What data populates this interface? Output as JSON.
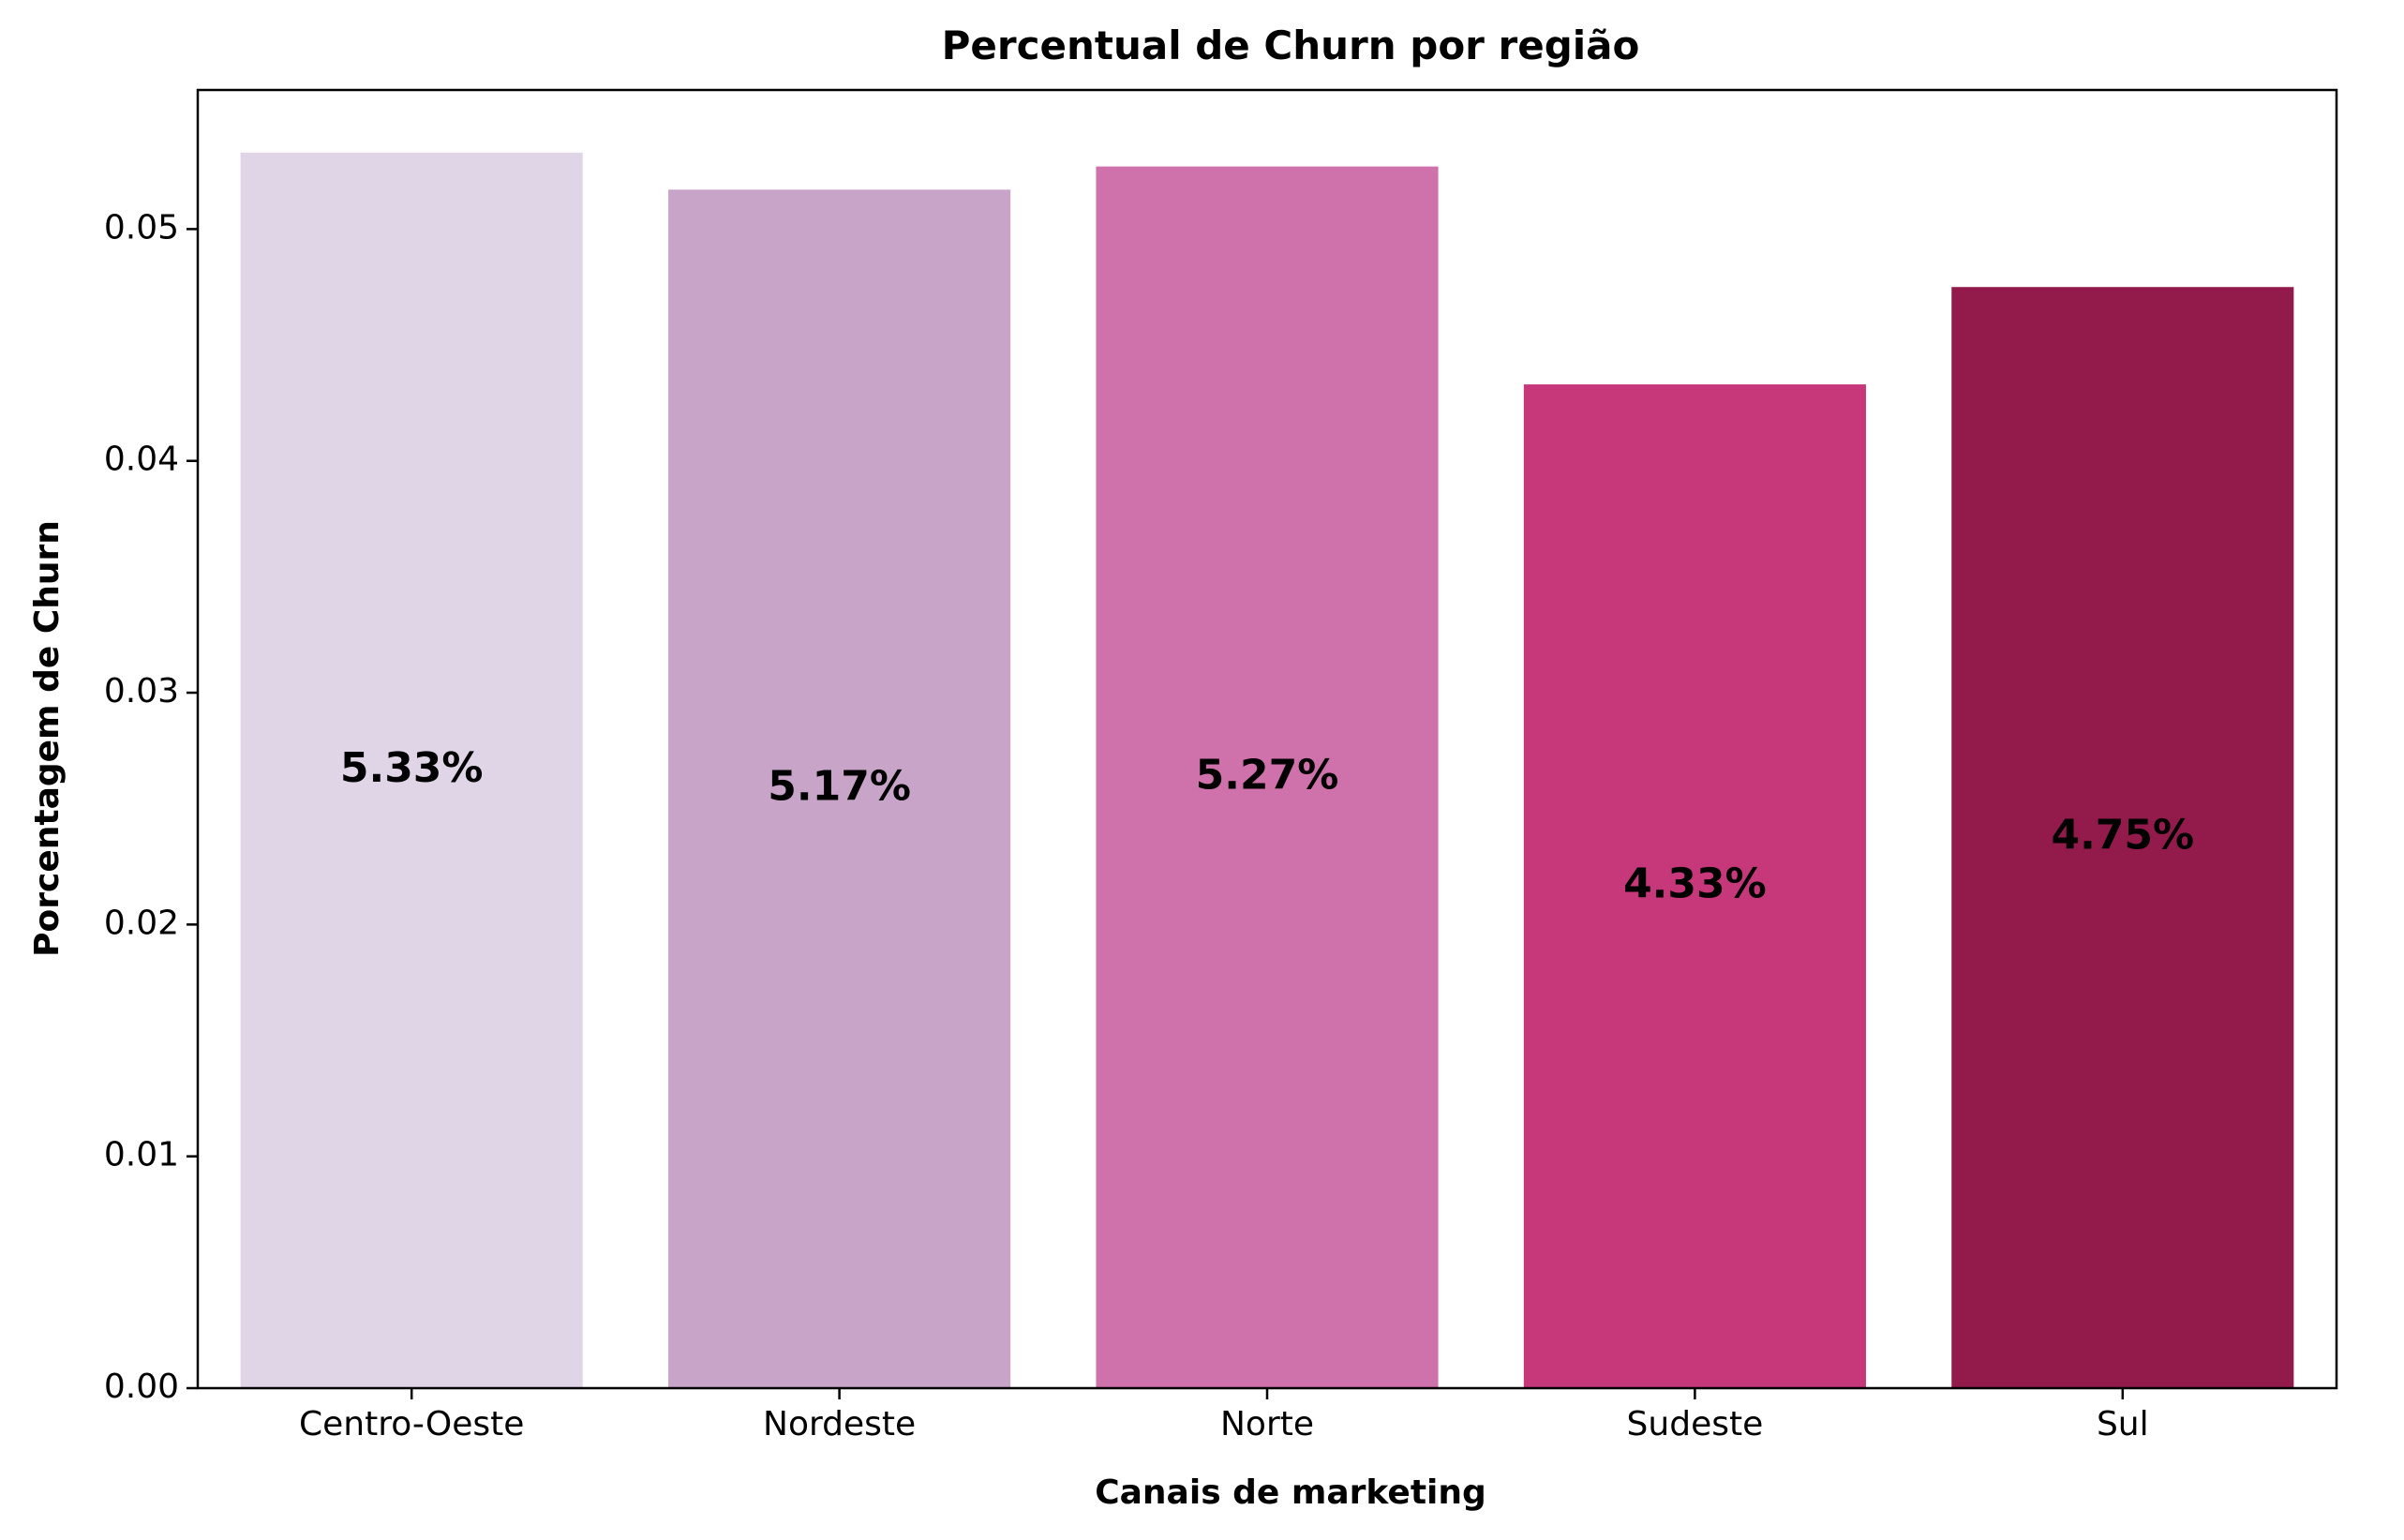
{
  "chart_data": {
    "type": "bar",
    "title": "Percentual de Churn por região",
    "xlabel": "Canais de marketing",
    "ylabel": "Porcentagem de Churn",
    "categories": [
      "Centro-Oeste",
      "Nordeste",
      "Norte",
      "Sudeste",
      "Sul"
    ],
    "values": [
      0.0533,
      0.0517,
      0.0527,
      0.0433,
      0.0475
    ],
    "data_labels": [
      "5.33%",
      "5.17%",
      "5.27%",
      "4.33%",
      "4.75%"
    ],
    "bar_colors": [
      "#dfd5e7",
      "#c8a5c8",
      "#cf71aa",
      "#c6387a",
      "#921b4c"
    ],
    "ylim": [
      0,
      0.056
    ],
    "yticks": [
      0.0,
      0.01,
      0.02,
      0.03,
      0.04,
      0.05
    ],
    "ytick_labels": [
      "0.00",
      "0.01",
      "0.02",
      "0.03",
      "0.04",
      "0.05"
    ],
    "grid": false,
    "legend": "none"
  }
}
